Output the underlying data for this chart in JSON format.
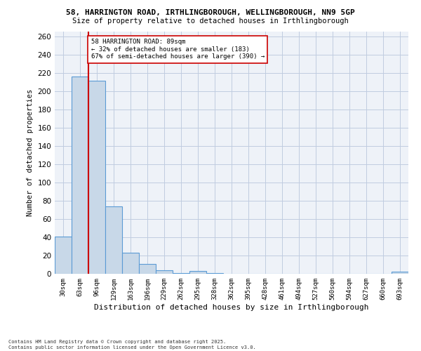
{
  "title_line1": "58, HARRINGTON ROAD, IRTHLINGBOROUGH, WELLINGBOROUGH, NN9 5GP",
  "title_line2": "Size of property relative to detached houses in Irthlingborough",
  "xlabel": "Distribution of detached houses by size in Irthlingborough",
  "ylabel": "Number of detached properties",
  "categories": [
    "30sqm",
    "63sqm",
    "96sqm",
    "129sqm",
    "163sqm",
    "196sqm",
    "229sqm",
    "262sqm",
    "295sqm",
    "328sqm",
    "362sqm",
    "395sqm",
    "428sqm",
    "461sqm",
    "494sqm",
    "527sqm",
    "560sqm",
    "594sqm",
    "627sqm",
    "660sqm",
    "693sqm"
  ],
  "values": [
    41,
    216,
    211,
    74,
    23,
    11,
    4,
    1,
    3,
    1,
    0,
    0,
    0,
    0,
    0,
    0,
    0,
    0,
    0,
    0,
    2
  ],
  "bar_color": "#c8d8e8",
  "bar_edge_color": "#5b9bd5",
  "annotation_text": "58 HARRINGTON ROAD: 89sqm\n← 32% of detached houses are smaller (183)\n67% of semi-detached houses are larger (390) →",
  "annotation_box_color": "#ffffff",
  "annotation_box_edge_color": "#cc0000",
  "vline_color": "#cc0000",
  "grid_color": "#c0cce0",
  "background_color": "#eef2f8",
  "ylim": [
    0,
    265
  ],
  "yticks": [
    0,
    20,
    40,
    60,
    80,
    100,
    120,
    140,
    160,
    180,
    200,
    220,
    240,
    260
  ],
  "vline_x": 1.5,
  "footer_line1": "Contains HM Land Registry data © Crown copyright and database right 2025.",
  "footer_line2": "Contains public sector information licensed under the Open Government Licence v3.0."
}
